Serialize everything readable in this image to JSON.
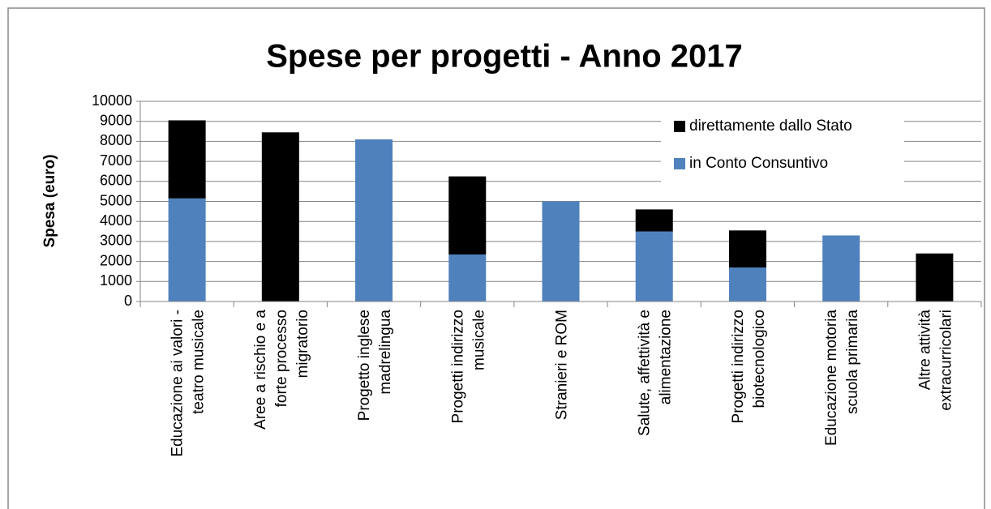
{
  "chart_data": {
    "type": "bar",
    "stacked": true,
    "title": "Spese per progetti - Anno 2017",
    "y_label": "Spesa (euro)",
    "categories": [
      "Educazione ai valori -\nteatro musicale",
      "Aree a rischio e a\nforte processo\nmigratorio",
      "Progetto inglese\nmadrelingua",
      "Progetti indirizzo\nmusicale",
      "Stranieri e ROM",
      "Salute, affettività e\nalimentazione",
      "Progetti indirizzo\nbiotecnologico",
      "Educazione motoria\nscuola primaria",
      "Altre attività\nextracurricolari"
    ],
    "series": [
      {
        "name": "in Conto Consuntivo",
        "color": "#4f81bd",
        "values": [
          5150,
          0,
          8100,
          2350,
          5000,
          3500,
          1700,
          3300,
          0
        ]
      },
      {
        "name": "direttamente dallo Stato",
        "color": "#000000",
        "values": [
          3900,
          8450,
          0,
          3900,
          0,
          1100,
          1850,
          0,
          2400
        ]
      }
    ],
    "ylim": [
      0,
      10000
    ],
    "yticks": [
      0,
      1000,
      2000,
      3000,
      4000,
      5000,
      6000,
      7000,
      8000,
      9000,
      10000
    ],
    "grid": true,
    "legend": "top-right"
  }
}
